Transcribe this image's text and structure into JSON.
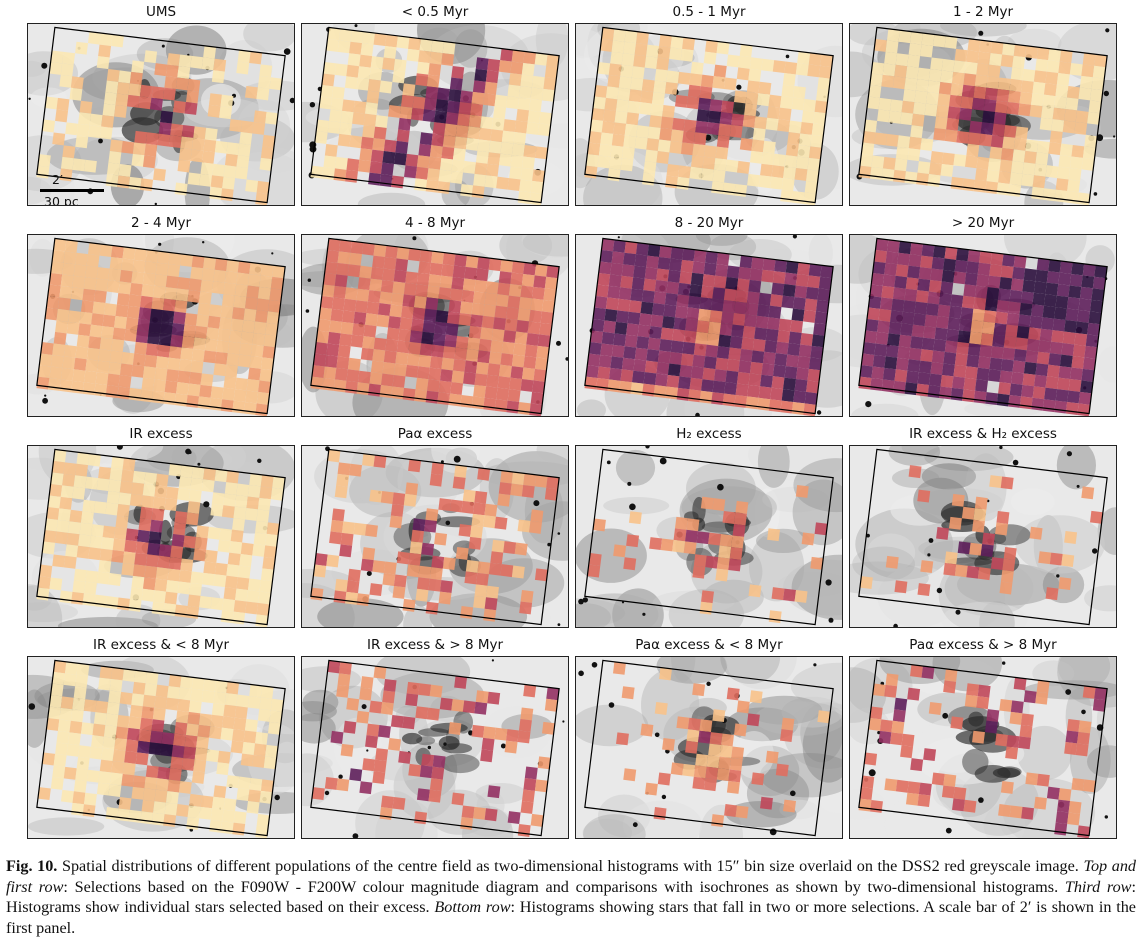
{
  "figure": {
    "panels": [
      {
        "title": "UMS",
        "density": "sparse-center",
        "scale_bar": {
          "angle": "2′",
          "dist": "30 pc"
        }
      },
      {
        "title": "< 0.5 Myr",
        "density": "ridge"
      },
      {
        "title": "0.5 - 1 Myr",
        "density": "center"
      },
      {
        "title": "1 - 2 Myr",
        "density": "center"
      },
      {
        "title": "2 - 4 Myr",
        "density": "center-full"
      },
      {
        "title": "4 - 8 Myr",
        "density": "arc-full"
      },
      {
        "title": "8 - 20 Myr",
        "density": "dark-full"
      },
      {
        "title": "> 20 Myr",
        "density": "darker-full"
      },
      {
        "title": "IR excess",
        "density": "center"
      },
      {
        "title": "Paα excess",
        "density": "scatter"
      },
      {
        "title": "H₂ excess",
        "density": "scatter-center"
      },
      {
        "title": "IR excess & H₂ excess",
        "density": "scatter-center"
      },
      {
        "title": "IR excess & < 8 Myr",
        "density": "center"
      },
      {
        "title": "IR excess & > 8 Myr",
        "density": "scatter-edge"
      },
      {
        "title": "Paα excess & < 8 Myr",
        "density": "scatter-center"
      },
      {
        "title": "Paα excess & > 8 Myr",
        "density": "scatter-edge"
      }
    ],
    "colormap": [
      "#fce8b2",
      "#f8c28a",
      "#f09a6e",
      "#e06e5f",
      "#c0475a",
      "#933163",
      "#5e1f5b",
      "#2b0f3d"
    ]
  },
  "caption": {
    "label": "Fig. 10.",
    "text1": " Spatial distributions of different populations of the centre field as two-dimensional histograms with 15″ bin size overlaid on the DSS2 red greyscale image. ",
    "em1": "Top and first row",
    "text2": ": Selections based on the F090W - F200W colour magnitude diagram and comparisons with isochrones as shown by two-dimensional histograms. ",
    "em2": "Third row",
    "text3": ": Histograms show individual stars selected based on their excess. ",
    "em3": "Bottom row",
    "text4": ": Histograms showing stars that fall in two or more selections. A scale bar of 2′ is shown in the first panel."
  }
}
